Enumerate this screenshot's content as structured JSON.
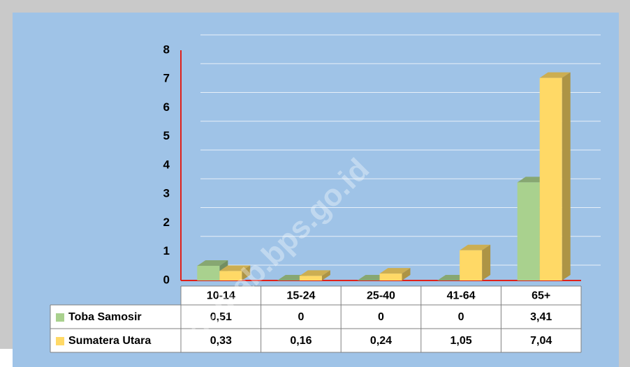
{
  "chart_data": {
    "type": "bar3d",
    "categories": [
      "10-14",
      "15-24",
      "25-40",
      "41-64",
      "65+"
    ],
    "series": [
      {
        "name": "Toba Samosir",
        "color": "#a9d18e",
        "values": [
          0.51,
          0,
          0,
          0,
          3.41
        ],
        "value_labels": [
          "0,51",
          "0",
          "0",
          "0",
          "3,41"
        ]
      },
      {
        "name": "Sumatera Utara",
        "color": "#ffd966",
        "values": [
          0.33,
          0.16,
          0.24,
          1.05,
          7.04
        ],
        "value_labels": [
          "0,33",
          "0,16",
          "0,24",
          "1,05",
          "7,04"
        ]
      }
    ],
    "ylim": [
      0,
      8
    ],
    "yticks": [
      0,
      1,
      2,
      3,
      4,
      5,
      6,
      7,
      8
    ],
    "grid": true,
    "watermark": "osikab.bps.go.id"
  }
}
